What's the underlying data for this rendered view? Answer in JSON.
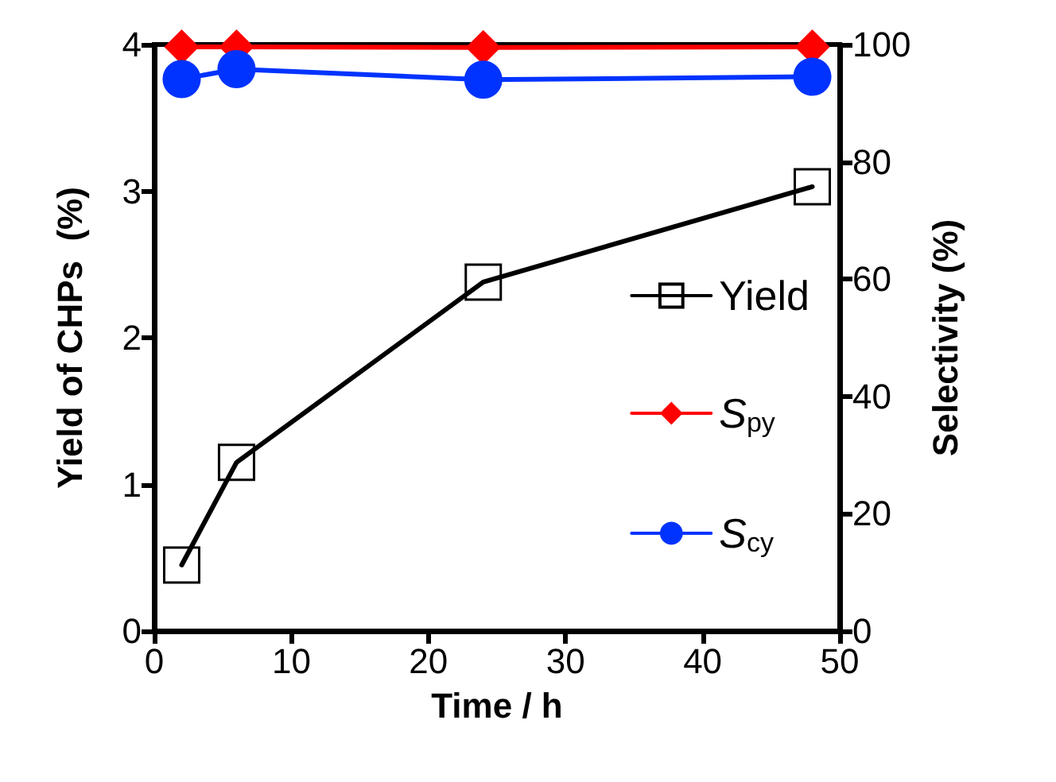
{
  "chart_data": {
    "type": "line",
    "xlabel": "Time / h",
    "ylabel": "Yield of CHPs  (%)",
    "y2label": "Selectivity (%)",
    "x": [
      2,
      6,
      24,
      48
    ],
    "series": [
      {
        "name": "Yield",
        "color": "#000000",
        "marker": "square",
        "values": [
          0.45,
          1.15,
          2.38,
          3.03
        ]
      },
      {
        "name": "S$_{py}$",
        "color": "#ff0000",
        "marker": "diamond",
        "axis": "y2",
        "values": [
          99.6,
          99.6,
          99.5,
          99.6
        ]
      },
      {
        "name": "S$_{cy}$",
        "color": "#0033ff",
        "marker": "circle",
        "axis": "y2",
        "values": [
          94.1,
          95.8,
          94.0,
          94.5
        ]
      }
    ],
    "xlim": [
      0,
      50
    ],
    "xticks": [
      0,
      10,
      20,
      30,
      40,
      50
    ],
    "ylim": [
      0,
      4
    ],
    "yticks": [
      0,
      1,
      2,
      3,
      4
    ],
    "y2lim": [
      0,
      100
    ],
    "y2ticks": [
      0,
      20,
      40,
      60,
      80,
      100
    ],
    "grid": false,
    "legend": "right",
    "line_style": "solid"
  }
}
